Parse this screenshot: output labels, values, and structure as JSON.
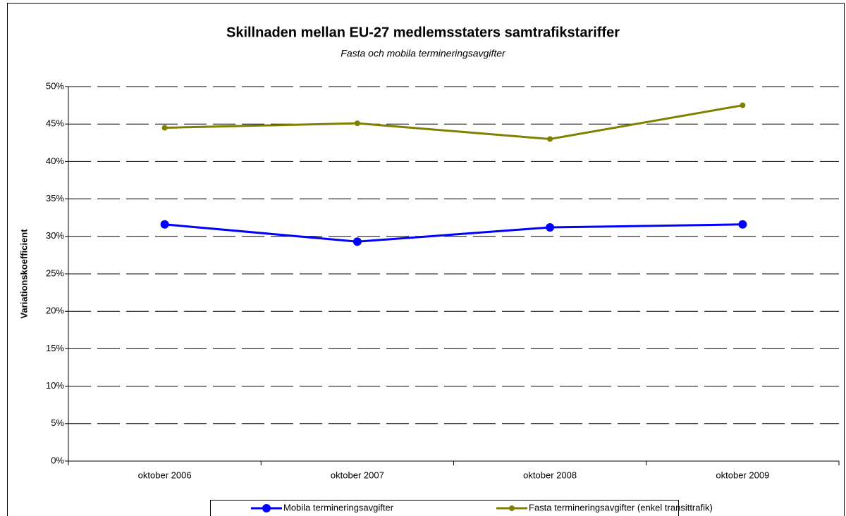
{
  "chart_data": {
    "type": "line",
    "title": "Skillnaden mellan EU-27 medlemsstaters samtrafikstariffer",
    "subtitle": "Fasta och mobila termineringsavgifter",
    "y_label": "Variationskoefficient",
    "categories": [
      "oktober 2006",
      "oktober 2007",
      "oktober 2008",
      "oktober 2009"
    ],
    "series": [
      {
        "name": "Mobila termineringsavgifter",
        "color": "#0000ff",
        "values": [
          31.6,
          29.3,
          31.2,
          31.6
        ]
      },
      {
        "name": "Fasta termineringsavgifter (enkel transittrafik)",
        "color": "#808000",
        "values": [
          44.5,
          45.1,
          43.0,
          47.5
        ]
      }
    ],
    "ylim": [
      0,
      50
    ],
    "yticks": [
      {
        "value": 0,
        "label": "0%"
      },
      {
        "value": 5,
        "label": "5%"
      },
      {
        "value": 10,
        "label": "10%"
      },
      {
        "value": 15,
        "label": "15%"
      },
      {
        "value": 20,
        "label": "20%"
      },
      {
        "value": 25,
        "label": "25%"
      },
      {
        "value": 30,
        "label": "30%"
      },
      {
        "value": 35,
        "label": "35%"
      },
      {
        "value": 40,
        "label": "40%"
      },
      {
        "value": 45,
        "label": "45%"
      },
      {
        "value": 50,
        "label": "50%"
      }
    ],
    "grid": true,
    "legend": "bottom"
  }
}
